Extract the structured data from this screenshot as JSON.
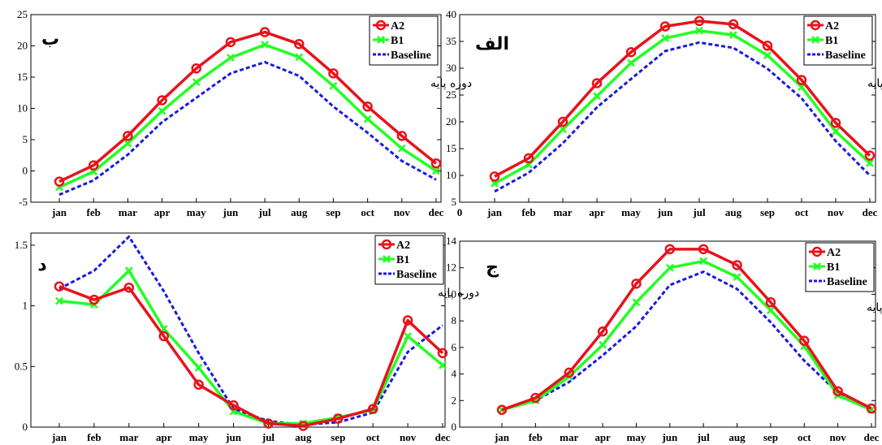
{
  "chart_data": [
    {
      "type": "line",
      "panel_label": "ب",
      "period_label": "دوره پایه",
      "categories": [
        "jan",
        "feb",
        "mar",
        "apr",
        "may",
        "jun",
        "jul",
        "aug",
        "sep",
        "oct",
        "nov",
        "dec"
      ],
      "ylim": [
        -5,
        25
      ],
      "yticks": [
        "-5",
        "0",
        "5",
        "10",
        "15",
        "20",
        "25"
      ],
      "legend_position": "top-right",
      "grid": false,
      "series": [
        {
          "name": "A2",
          "color": "#e8121b",
          "marker": "circle",
          "values": [
            -1.7,
            0.9,
            5.6,
            11.3,
            16.4,
            20.6,
            22.2,
            20.3,
            15.6,
            10.3,
            5.6,
            1.2
          ]
        },
        {
          "name": "B1",
          "color": "#22ff22",
          "marker": "x",
          "values": [
            -2.6,
            -0.1,
            4.4,
            9.6,
            14.2,
            18.1,
            20.2,
            18.2,
            13.6,
            8.3,
            3.6,
            0.0
          ]
        },
        {
          "name": "Baseline",
          "color": "#1a1adc",
          "dashed": true,
          "values": [
            -3.8,
            -1.5,
            2.6,
            7.8,
            11.7,
            15.6,
            17.4,
            15.2,
            10.3,
            6.1,
            1.6,
            -1.4
          ]
        }
      ]
    },
    {
      "type": "line",
      "panel_label": "الف",
      "period_label": "دوره پایه",
      "categories": [
        "jan",
        "feb",
        "mar",
        "apr",
        "may",
        "jun",
        "jul",
        "aug",
        "sep",
        "oct",
        "nov",
        "dec"
      ],
      "ylim": [
        5,
        40
      ],
      "yticks": [
        "5",
        "10",
        "15",
        "20",
        "25",
        "30",
        "35",
        "40"
      ],
      "xlim_label": "0",
      "legend_position": "top-right",
      "grid": false,
      "series": [
        {
          "name": "A2",
          "color": "#e8121b",
          "marker": "circle",
          "values": [
            9.8,
            13.2,
            20.0,
            27.2,
            33.0,
            37.8,
            38.8,
            38.2,
            34.2,
            27.8,
            19.8,
            13.7
          ]
        },
        {
          "name": "B1",
          "color": "#22ff22",
          "marker": "x",
          "values": [
            8.5,
            12.0,
            18.6,
            24.8,
            31.0,
            35.6,
            37.0,
            36.2,
            32.4,
            26.5,
            18.2,
            12.3
          ]
        },
        {
          "name": "Baseline",
          "color": "#1a1adc",
          "dashed": true,
          "values": [
            7.0,
            10.5,
            16.0,
            22.7,
            28.0,
            33.2,
            34.8,
            33.8,
            29.9,
            24.4,
            16.4,
            10.0
          ]
        }
      ]
    },
    {
      "type": "line",
      "panel_label": "د",
      "period_label": "دوره پایه",
      "categories": [
        "jan",
        "feb",
        "mar",
        "apr",
        "may",
        "jun",
        "jul",
        "aug",
        "sep",
        "oct",
        "nov",
        "dec"
      ],
      "ylim": [
        0,
        1.6
      ],
      "yticks": [
        "0",
        "0.5",
        "1",
        "1.5"
      ],
      "legend_position": "top-right",
      "grid": false,
      "series": [
        {
          "name": "A2",
          "color": "#e8121b",
          "marker": "circle",
          "values": [
            1.16,
            1.05,
            1.15,
            0.75,
            0.35,
            0.18,
            0.03,
            0.01,
            0.07,
            0.15,
            0.88,
            0.61
          ]
        },
        {
          "name": "B1",
          "color": "#22ff22",
          "marker": "x",
          "values": [
            1.04,
            1.01,
            1.29,
            0.81,
            0.49,
            0.13,
            0.03,
            0.03,
            0.08,
            0.14,
            0.75,
            0.51
          ]
        },
        {
          "name": "Baseline",
          "color": "#1a1adc",
          "dashed": true,
          "values": [
            1.14,
            1.29,
            1.57,
            1.12,
            0.61,
            0.15,
            0.05,
            0.02,
            0.04,
            0.12,
            0.62,
            0.84
          ]
        }
      ]
    },
    {
      "type": "line",
      "panel_label": "ج",
      "period_label": "دوره پایه",
      "categories": [
        "jan",
        "feb",
        "mar",
        "apr",
        "may",
        "jun",
        "jul",
        "aug",
        "sep",
        "oct",
        "nov",
        "dec"
      ],
      "ylim": [
        0,
        14
      ],
      "yticks": [
        "0",
        "2",
        "4",
        "6",
        "8",
        "10",
        "12",
        "14"
      ],
      "legend_position": "top-right",
      "grid": false,
      "series": [
        {
          "name": "A2",
          "color": "#e8121b",
          "marker": "circle",
          "values": [
            1.3,
            2.2,
            4.1,
            7.2,
            10.8,
            13.4,
            13.4,
            12.2,
            9.4,
            6.5,
            2.7,
            1.4
          ]
        },
        {
          "name": "B1",
          "color": "#22ff22",
          "marker": "x",
          "values": [
            1.3,
            2.0,
            3.8,
            6.2,
            9.4,
            12.0,
            12.5,
            11.3,
            8.8,
            6.1,
            2.4,
            1.3
          ]
        },
        {
          "name": "Baseline",
          "color": "#1a1adc",
          "dashed": true,
          "values": [
            1.3,
            2.0,
            3.4,
            5.4,
            7.6,
            10.7,
            11.7,
            10.4,
            7.9,
            5.0,
            2.6,
            1.3
          ]
        }
      ]
    }
  ]
}
